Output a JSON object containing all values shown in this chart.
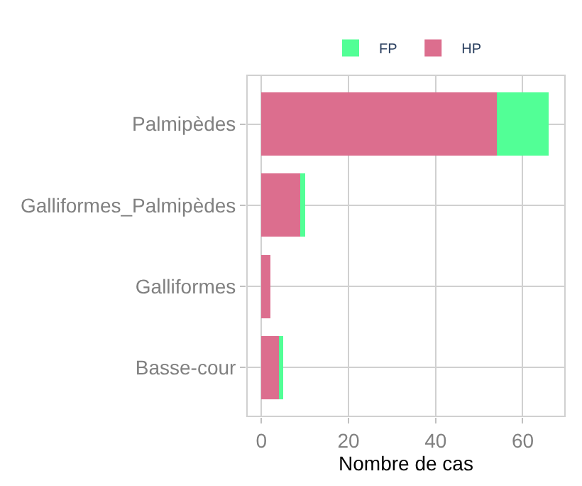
{
  "chart_data": {
    "type": "bar",
    "orientation": "horizontal",
    "stacked": true,
    "xlabel": "Nombre de cas",
    "categories": [
      "Palmipèdes",
      "Galliformes_Palmipèdes",
      "Galliformes",
      "Basse-cour"
    ],
    "series": [
      {
        "name": "HP",
        "color": "#dc6e8e",
        "values": [
          54,
          9,
          2,
          4
        ]
      },
      {
        "name": "FP",
        "color": "#52ff96",
        "values": [
          12,
          1,
          0,
          1
        ]
      }
    ],
    "xlim": [
      -3.3,
      69.7
    ],
    "xticks": [
      0,
      20,
      40,
      60
    ],
    "grid": true,
    "legend": "top"
  }
}
